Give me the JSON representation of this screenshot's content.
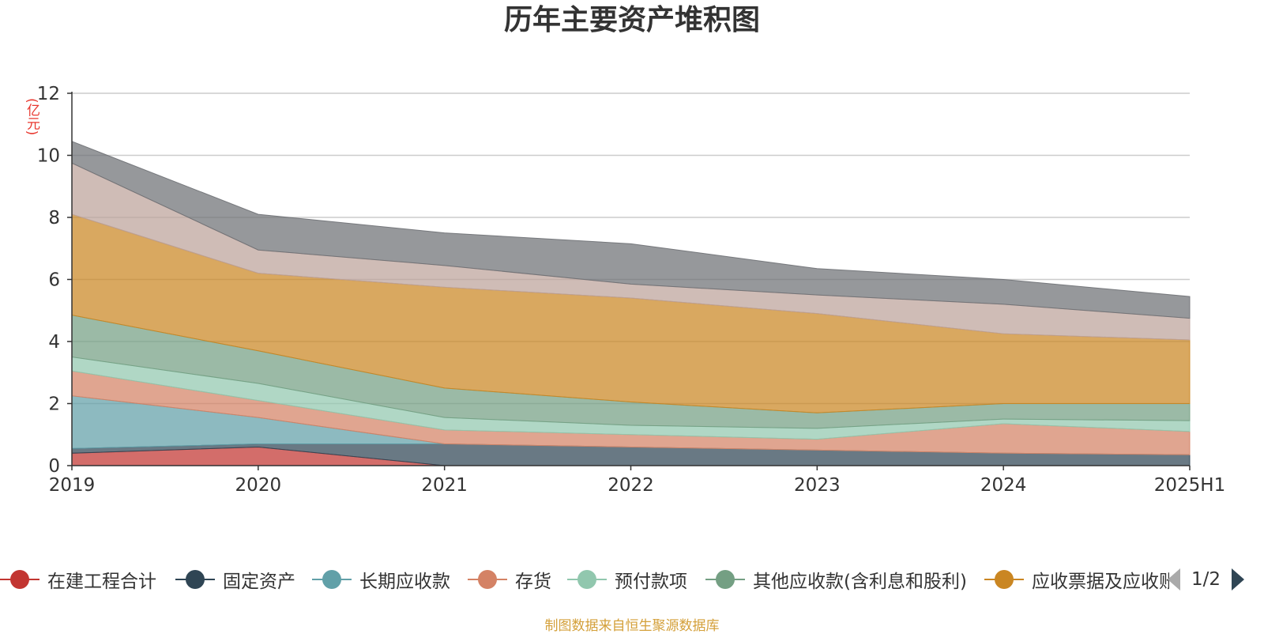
{
  "title": "历年主要资产堆积图",
  "unit_label": "(亿元)",
  "footer": "制图数据来自恒生聚源数据库",
  "pager": {
    "text": "1/2"
  },
  "chart_data": {
    "type": "area",
    "stacked": true,
    "x": [
      "2019",
      "2020",
      "2021",
      "2022",
      "2023",
      "2024",
      "2025H1"
    ],
    "ylim": [
      0,
      12
    ],
    "yticks": [
      0,
      2,
      4,
      6,
      8,
      10,
      12
    ],
    "ylabel": "(亿元)",
    "grid": true,
    "legend_position": "bottom",
    "series": [
      {
        "name": "在建工程合计",
        "color": "#c23531",
        "values": [
          0.4,
          0.6,
          0.0,
          0.0,
          0.0,
          0.0,
          0.0
        ]
      },
      {
        "name": "固定资产",
        "color": "#2f4554",
        "values": [
          0.15,
          0.1,
          0.7,
          0.6,
          0.5,
          0.4,
          0.35
        ]
      },
      {
        "name": "长期应收款",
        "color": "#61a0a8",
        "values": [
          1.7,
          0.85,
          0.0,
          0.0,
          0.0,
          0.0,
          0.0
        ]
      },
      {
        "name": "存货",
        "color": "#d48265",
        "values": [
          0.8,
          0.55,
          0.45,
          0.4,
          0.35,
          0.95,
          0.75
        ]
      },
      {
        "name": "预付款项",
        "color": "#91c7ae",
        "values": [
          0.45,
          0.55,
          0.4,
          0.3,
          0.35,
          0.15,
          0.35
        ]
      },
      {
        "name": "其他应收款(含利息和股利)",
        "color": "#749f83",
        "values": [
          1.35,
          1.05,
          0.95,
          0.75,
          0.5,
          0.5,
          0.55
        ]
      },
      {
        "name": "应收票据及应收账款",
        "color": "#ca8622",
        "values": [
          3.25,
          2.5,
          3.25,
          3.35,
          3.2,
          2.25,
          2.05
        ]
      },
      {
        "name": "",
        "color": "#bda29a",
        "values": [
          1.65,
          0.75,
          0.7,
          0.45,
          0.6,
          0.95,
          0.7
        ]
      },
      {
        "name": "",
        "color": "#6e7074",
        "values": [
          0.7,
          1.15,
          1.05,
          1.3,
          0.85,
          0.8,
          0.7
        ]
      }
    ]
  }
}
